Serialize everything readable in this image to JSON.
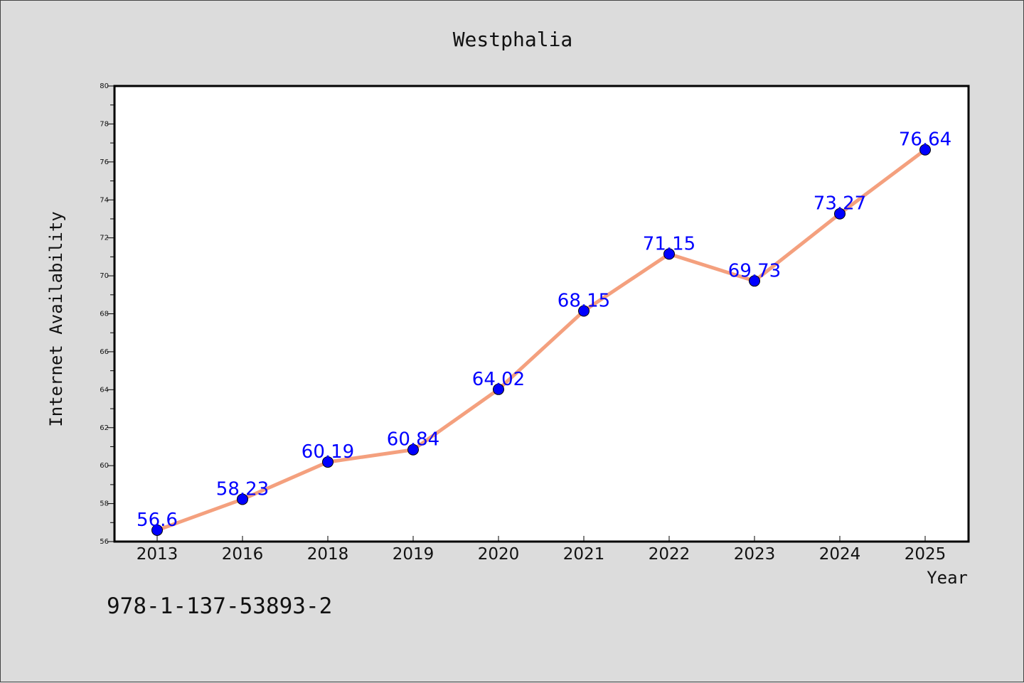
{
  "chart_data": {
    "type": "line",
    "title": "Westphalia",
    "xlabel": "Year",
    "ylabel": "Internet Availability",
    "categories": [
      "2013",
      "2016",
      "2018",
      "2019",
      "2020",
      "2021",
      "2022",
      "2023",
      "2024",
      "2025"
    ],
    "series": [
      {
        "values": [
          56.6,
          58.23,
          60.19,
          60.84,
          64.02,
          68.15,
          71.15,
          69.73,
          73.27,
          76.64
        ]
      }
    ],
    "data_labels": [
      "56.6",
      "58.23",
      "60.19",
      "60.84",
      "64.02",
      "68.15",
      "71.15",
      "69.73",
      "73.27",
      "76.64"
    ],
    "ylim": [
      56,
      80
    ],
    "yticks": [
      "56",
      "58",
      "60",
      "62",
      "64",
      "66",
      "68",
      "70",
      "72",
      "74",
      "76",
      "78",
      "80"
    ],
    "grid": false,
    "legend": "none",
    "colors": {
      "line": "#f4a07e",
      "marker": "#0000ff",
      "label": "#0000ff",
      "background": "#dcdcdc",
      "plot_background": "#ffffff"
    }
  },
  "footer": {
    "code": "978-1-137-53893-2"
  }
}
